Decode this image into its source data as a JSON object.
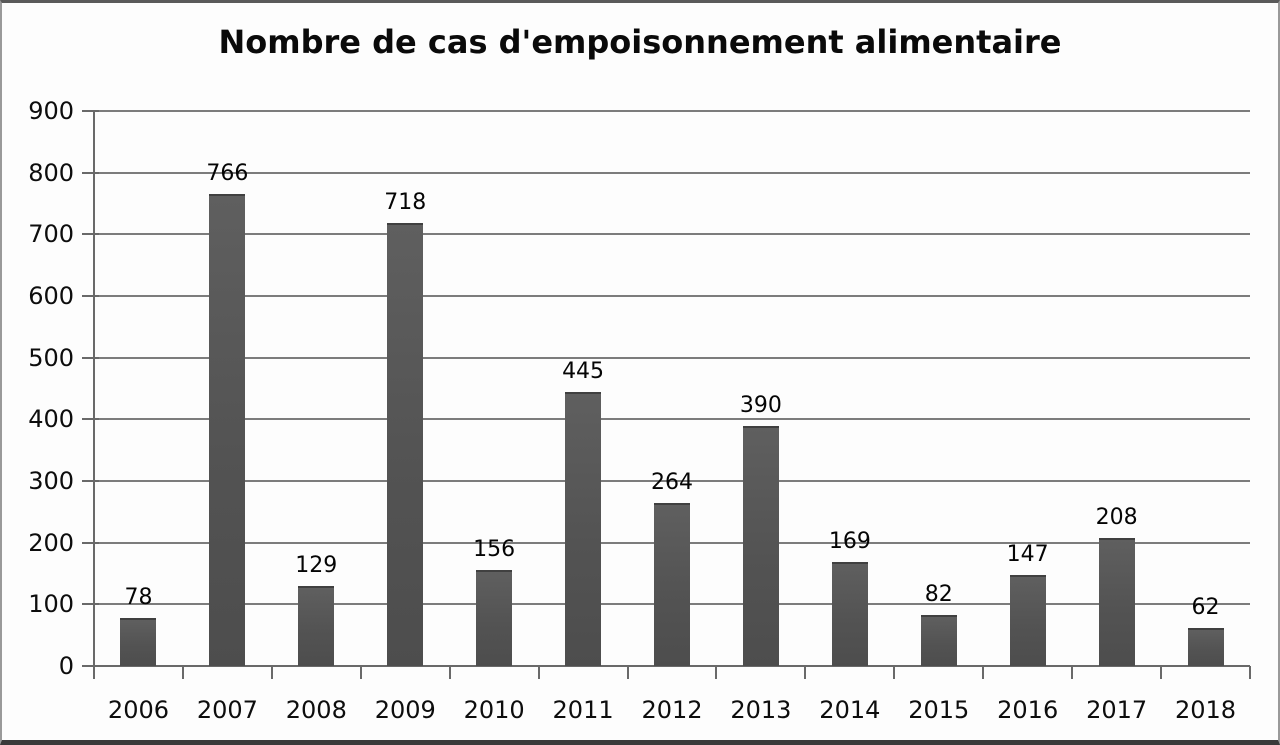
{
  "chart_data": {
    "type": "bar",
    "title": "Nombre de cas d'empoisonnement alimentaire",
    "categories": [
      "2006",
      "2007",
      "2008",
      "2009",
      "2010",
      "2011",
      "2012",
      "2013",
      "2014",
      "2015",
      "2016",
      "2017",
      "2018"
    ],
    "values": [
      78,
      766,
      129,
      718,
      156,
      445,
      264,
      390,
      169,
      82,
      147,
      208,
      62
    ],
    "xlabel": "",
    "ylabel": "",
    "ylim": [
      0,
      900
    ],
    "yticks": [
      0,
      100,
      200,
      300,
      400,
      500,
      600,
      700,
      800,
      900
    ],
    "grid": true,
    "legend_position": "none",
    "bar_color": "#565656",
    "gridline_color": "#7c7c7c",
    "axis_color": "#696969",
    "text_color": "#0d0d0d",
    "background_color": "#fdfdfd"
  }
}
